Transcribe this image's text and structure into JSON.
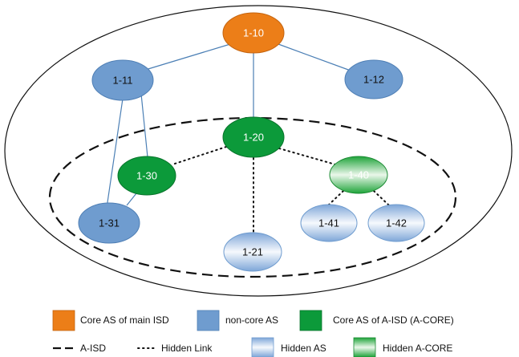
{
  "colors": {
    "core_main": "#ec7e18",
    "non_core": "#6f9ccf",
    "a_core": "#0c9a3a",
    "link": "#4b7fb5",
    "hidden_link": "#111111",
    "hidden_as_light": "#f6f9fd",
    "hidden_as_dark": "#7ea6d8",
    "hidden_acore_light": "#eaf7ea",
    "hidden_acore_dark": "#1fa43a"
  },
  "nodes": {
    "n1_10": {
      "label": "1-10",
      "kind": "core-main"
    },
    "n1_11": {
      "label": "1-11",
      "kind": "non-core"
    },
    "n1_12": {
      "label": "1-12",
      "kind": "non-core"
    },
    "n1_20": {
      "label": "1-20",
      "kind": "a-core"
    },
    "n1_30": {
      "label": "1-30",
      "kind": "a-core"
    },
    "n1_40": {
      "label": "1-40",
      "kind": "hidden-a-core"
    },
    "n1_31": {
      "label": "1-31",
      "kind": "non-core"
    },
    "n1_21": {
      "label": "1-21",
      "kind": "hidden-as"
    },
    "n1_41": {
      "label": "1-41",
      "kind": "hidden-as"
    },
    "n1_42": {
      "label": "1-42",
      "kind": "hidden-as"
    }
  },
  "legend": {
    "core_main": "Core AS of main ISD",
    "non_core": "non-core AS",
    "a_core": "Core AS of A-ISD (A-CORE)",
    "a_isd": "A-ISD",
    "hidden_link": "Hidden Link",
    "hidden_as": "Hidden AS",
    "hidden_acore": "Hidden A-CORE"
  }
}
